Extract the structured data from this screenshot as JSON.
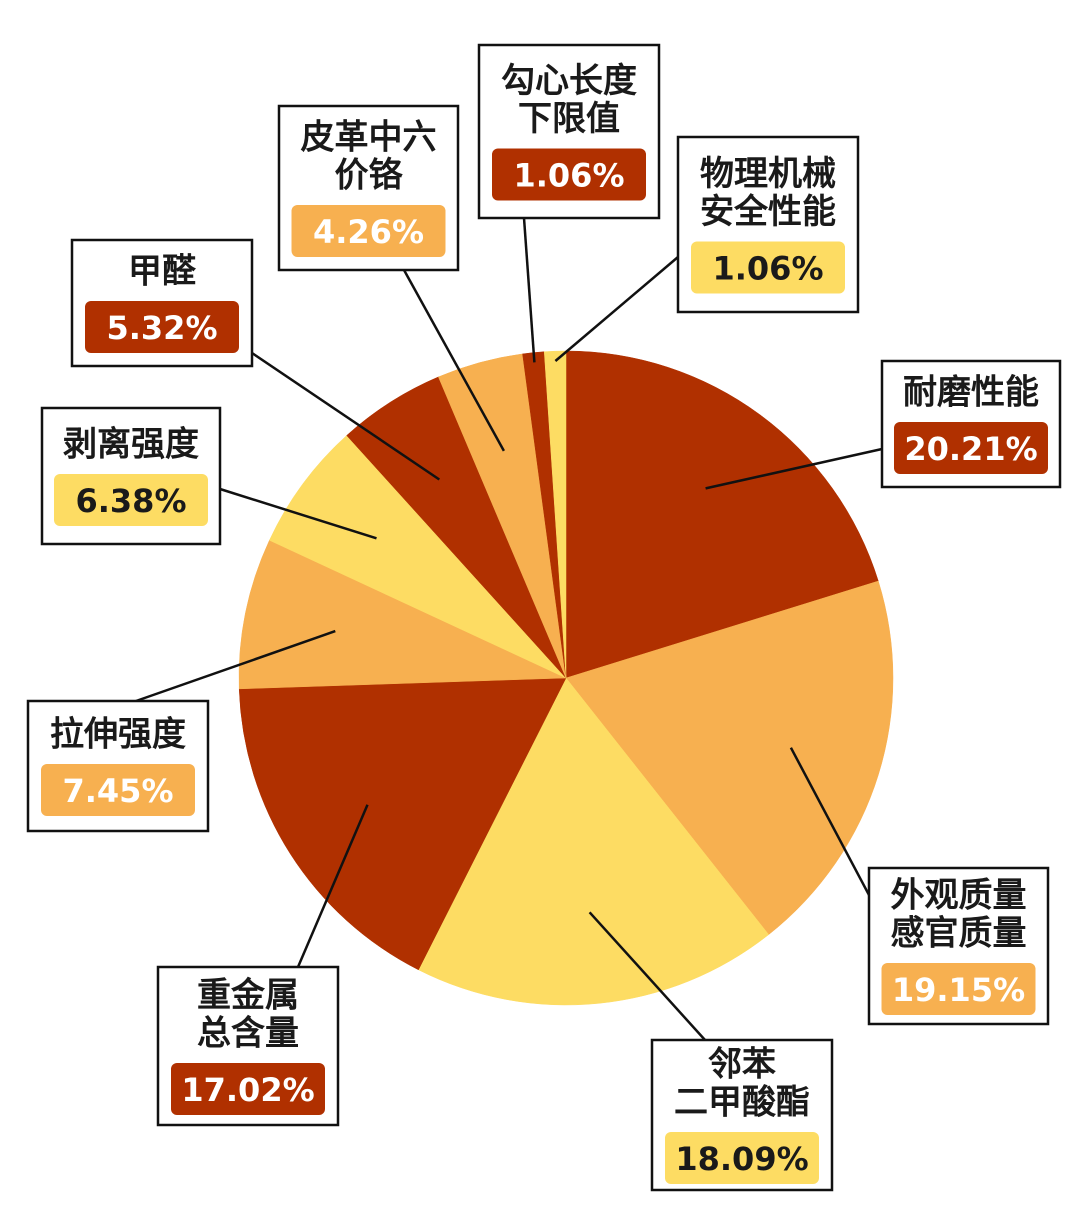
{
  "chart_data": {
    "type": "pie",
    "slices": [
      {
        "label": "耐磨性能",
        "value": 20.21,
        "value_text": "20.21%",
        "color": "#b03000"
      },
      {
        "label": "外观质量 感官质量",
        "value": 19.15,
        "value_text": "19.15%",
        "color": "#f7b050"
      },
      {
        "label": "邻苯 二甲酸酯",
        "value": 18.09,
        "value_text": "18.09%",
        "color": "#fddc63"
      },
      {
        "label": "重金属 总含量",
        "value": 17.02,
        "value_text": "17.02%",
        "color": "#b03000"
      },
      {
        "label": "拉伸强度",
        "value": 7.45,
        "value_text": "7.45%",
        "color": "#f7b050"
      },
      {
        "label": "剥离强度",
        "value": 6.38,
        "value_text": "6.38%",
        "color": "#fddc63"
      },
      {
        "label": "甲醛",
        "value": 5.32,
        "value_text": "5.32%",
        "color": "#b03000"
      },
      {
        "label": "皮革中六 价铬",
        "value": 4.26,
        "value_text": "4.26%",
        "color": "#f7b050"
      },
      {
        "label": "勾心长度 下限值",
        "value": 1.06,
        "value_text": "1.06%",
        "color": "#b03000"
      },
      {
        "label": "物理机械 安全性能",
        "value": 1.06,
        "value_text": "1.06%",
        "color": "#fddc63"
      }
    ]
  }
}
